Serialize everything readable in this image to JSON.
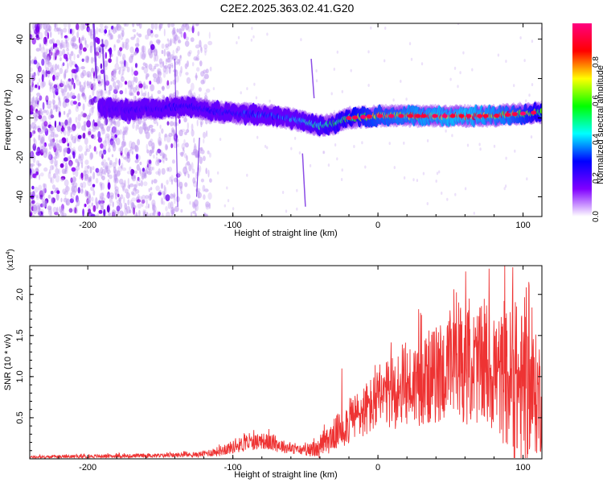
{
  "title": "C2E2.2025.363.02.41.G20",
  "chart_data": [
    {
      "type": "heatmap",
      "xlabel": "Height of straight line (km)",
      "ylabel": "Frequency (Hz)",
      "xlim": [
        -240,
        113
      ],
      "ylim": [
        -50,
        48
      ],
      "xticks": [
        -200,
        -100,
        0,
        100
      ],
      "yticks": [
        -40,
        -20,
        0,
        20,
        40
      ],
      "colorbar": {
        "label": "Normalized spectral amplitude",
        "range": [
          0,
          1
        ],
        "ticks": [
          "0.0",
          "0.2",
          "0.4",
          "0.6",
          "0.8"
        ],
        "colormap": [
          "#ffffff",
          "#8000ff",
          "#0000ff",
          "#00ffff",
          "#00ff00",
          "#ffff00",
          "#ff0000",
          "#ff0080"
        ]
      },
      "ridge_center": {
        "x": [
          -190,
          -170,
          -150,
          -130,
          -110,
          -90,
          -70,
          -50,
          -40,
          -30,
          -20,
          0,
          20,
          40,
          60,
          80,
          95,
          113
        ],
        "y": [
          5,
          4,
          5,
          6,
          3,
          2,
          1,
          -2,
          -4,
          -3,
          0,
          1,
          1,
          1,
          1,
          1,
          2,
          3
        ]
      },
      "peak_amplitude_by_height": {
        "x": [
          -190,
          -150,
          -100,
          -60,
          -30,
          0,
          30,
          60,
          90,
          113
        ],
        "amplitude": [
          0.2,
          0.25,
          0.3,
          0.4,
          0.55,
          0.75,
          0.85,
          0.9,
          0.8,
          0.6
        ]
      }
    },
    {
      "type": "line",
      "xlabel": "Height of straight line (km)",
      "ylabel": "SNR (10 * v/v)",
      "scale_label": "(x10",
      "scale_exp": "4",
      "xlim": [
        -240,
        113
      ],
      "ylim": [
        0,
        2.35
      ],
      "xticks": [
        -200,
        -100,
        0,
        100
      ],
      "yticks": [
        0.5,
        1.0,
        1.5,
        2.0
      ],
      "yticklabels": [
        "0.5",
        "1.0",
        "1.5",
        "2.0"
      ],
      "color": "#ee3333",
      "envelope": {
        "x": [
          -240,
          -200,
          -150,
          -125,
          -110,
          -95,
          -80,
          -70,
          -60,
          -50,
          -40,
          -30,
          -20,
          -10,
          0,
          10,
          20,
          30,
          40,
          50,
          60,
          70,
          80,
          85,
          90,
          95,
          100,
          105,
          113
        ],
        "mean": [
          0.02,
          0.03,
          0.04,
          0.05,
          0.09,
          0.17,
          0.22,
          0.18,
          0.12,
          0.1,
          0.12,
          0.3,
          0.45,
          0.58,
          0.7,
          0.8,
          0.88,
          0.95,
          1.02,
          1.08,
          1.12,
          1.12,
          1.05,
          1.0,
          0.95,
          0.9,
          0.85,
          0.8,
          0.75
        ],
        "amp": [
          0.015,
          0.02,
          0.025,
          0.03,
          0.06,
          0.09,
          0.1,
          0.1,
          0.06,
          0.06,
          0.12,
          0.2,
          0.28,
          0.33,
          0.38,
          0.45,
          0.5,
          0.55,
          0.6,
          0.65,
          0.7,
          0.72,
          0.75,
          0.78,
          0.9,
          1.0,
          0.95,
          0.8,
          0.7
        ]
      },
      "annotated_peaks": [
        {
          "x": 93,
          "y": 2.33
        },
        {
          "x": 104,
          "y": 2.15
        },
        {
          "x": 63,
          "y": 1.95
        },
        {
          "x": 87,
          "y": 1.92
        },
        {
          "x": 28,
          "y": 1.82
        },
        {
          "x": 30,
          "y": 1.75
        },
        {
          "x": -25,
          "y": 1.1
        }
      ]
    }
  ]
}
